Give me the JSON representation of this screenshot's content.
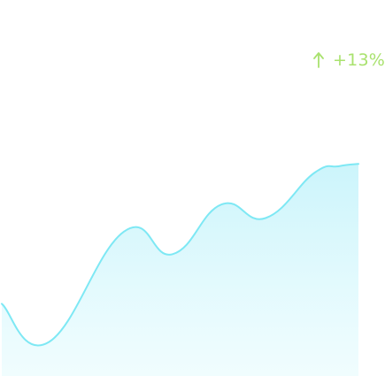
{
  "trend": {
    "label": "+13%",
    "direction": "up",
    "icon": "arrow-up-icon",
    "color": "#a9e26e"
  },
  "chart_data": {
    "type": "area",
    "x": [
      0,
      1,
      2,
      3,
      4,
      5,
      6,
      7,
      8
    ],
    "values": [
      3.2,
      1.5,
      6.4,
      5.4,
      7.6,
      7.0,
      9.0,
      9.3,
      9.4
    ],
    "line_color": "#7ee8f4",
    "fill_color": "#c9f4fb",
    "title": "",
    "xlabel": "",
    "ylabel": "",
    "grid": false
  }
}
